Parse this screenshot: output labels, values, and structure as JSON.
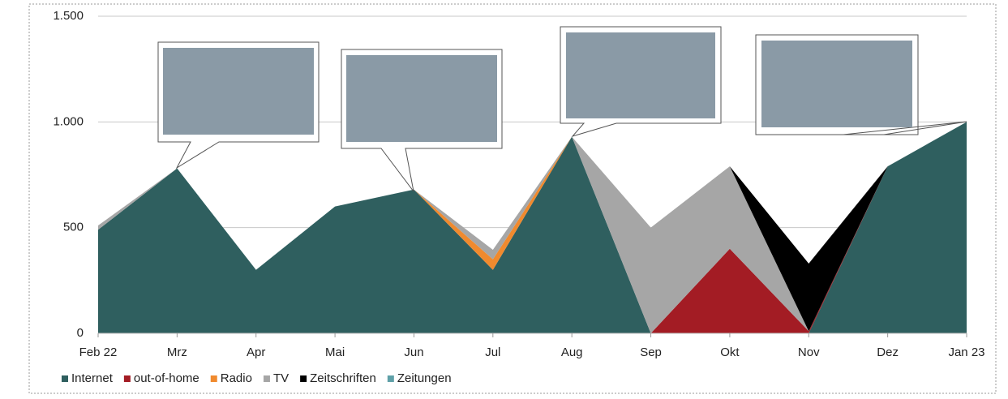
{
  "chart_data": {
    "type": "stacked-area",
    "categories": [
      "Feb 22",
      "Mrz",
      "Apr",
      "Mai",
      "Jun",
      "Jul",
      "Aug",
      "Sep",
      "Okt",
      "Nov",
      "Dez",
      "Jan 23"
    ],
    "series": [
      {
        "name": "Internet",
        "color": "#2f5f5f",
        "values": [
          490,
          780,
          300,
          600,
          680,
          300,
          930,
          0,
          0,
          0,
          790,
          1000
        ]
      },
      {
        "name": "out-of-home",
        "color": "#a31c24",
        "values": [
          0,
          0,
          0,
          0,
          0,
          0,
          0,
          0,
          400,
          10,
          0,
          0
        ]
      },
      {
        "name": "Radio",
        "color": "#f08a2e",
        "values": [
          0,
          0,
          0,
          0,
          0,
          50,
          0,
          0,
          0,
          0,
          0,
          0
        ]
      },
      {
        "name": "TV",
        "color": "#a6a6a6",
        "values": [
          20,
          0,
          0,
          0,
          0,
          45,
          0,
          500,
          390,
          0,
          0,
          0
        ]
      },
      {
        "name": "Zeitschriften",
        "color": "#000000",
        "values": [
          0,
          0,
          0,
          0,
          0,
          0,
          0,
          0,
          0,
          320,
          0,
          0
        ]
      },
      {
        "name": "Zeitungen",
        "color": "#5fa0a8",
        "values": [
          0,
          0,
          0,
          0,
          0,
          0,
          0,
          0,
          0,
          0,
          0,
          0
        ]
      }
    ],
    "ylim": [
      0,
      1500
    ],
    "yticks": [
      0,
      500,
      {
        "value": 1000,
        "label": "1.000"
      },
      {
        "value": 1500,
        "label": "1.500"
      }
    ],
    "grid": true,
    "legend": "bottom"
  }
}
